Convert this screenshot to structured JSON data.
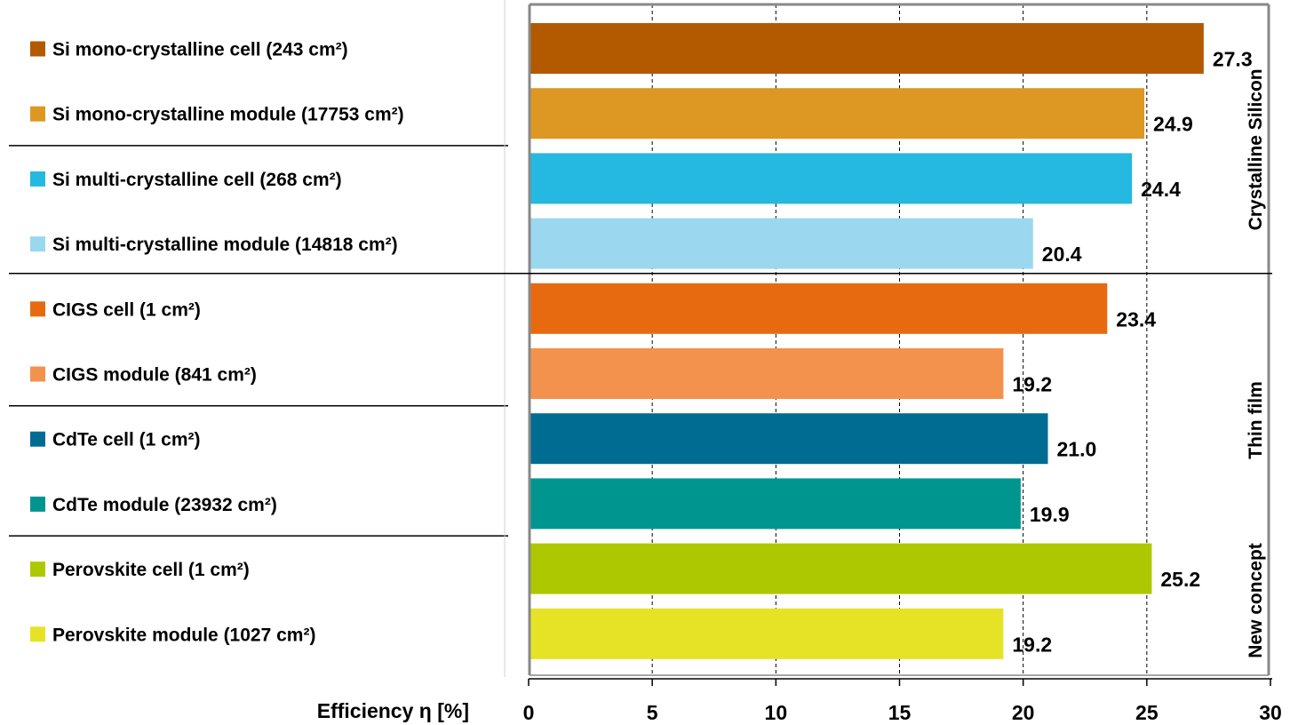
{
  "chart_data": {
    "type": "bar",
    "orientation": "horizontal",
    "categories": [
      "Si mono-crystalline cell (243 cm²)",
      "Si mono-crystalline module (17753 cm²)",
      "Si multi-crystalline cell (268 cm²)",
      "Si multi-crystalline module (14818 cm²)",
      "CIGS cell (1 cm²)",
      "CIGS module (841 cm²)",
      "CdTe cell (1 cm²)",
      "CdTe module (23932 cm²)",
      "Perovskite cell (1 cm²)",
      "Perovskite module (1027 cm²)"
    ],
    "values": [
      27.3,
      24.9,
      24.4,
      20.4,
      23.4,
      19.2,
      21.0,
      19.9,
      25.2,
      19.2
    ],
    "value_labels": [
      "27.3",
      "24.9",
      "24.4",
      "20.4",
      "23.4",
      "19.2",
      "21.0",
      "19.9",
      "25.2",
      "19.2"
    ],
    "colors": [
      "#b35a00",
      "#dc9822",
      "#25b8e0",
      "#9bd8ef",
      "#e86a10",
      "#f3924c",
      "#006c92",
      "#00968f",
      "#aec800",
      "#e6e327"
    ],
    "xlabel": "Efficiency η [%]",
    "xlim": [
      0,
      30
    ],
    "xticks": [
      0,
      5,
      10,
      15,
      20,
      25,
      30
    ],
    "grid": "vertical dashed",
    "legend": "left",
    "groups": [
      {
        "label": "Crystalline Silicon",
        "start": 0,
        "end": 3
      },
      {
        "label": "Thin film",
        "start": 4,
        "end": 7
      },
      {
        "label": "New concept",
        "start": 8,
        "end": 9
      }
    ],
    "subgroup_breaks": [
      2,
      6,
      8
    ]
  }
}
